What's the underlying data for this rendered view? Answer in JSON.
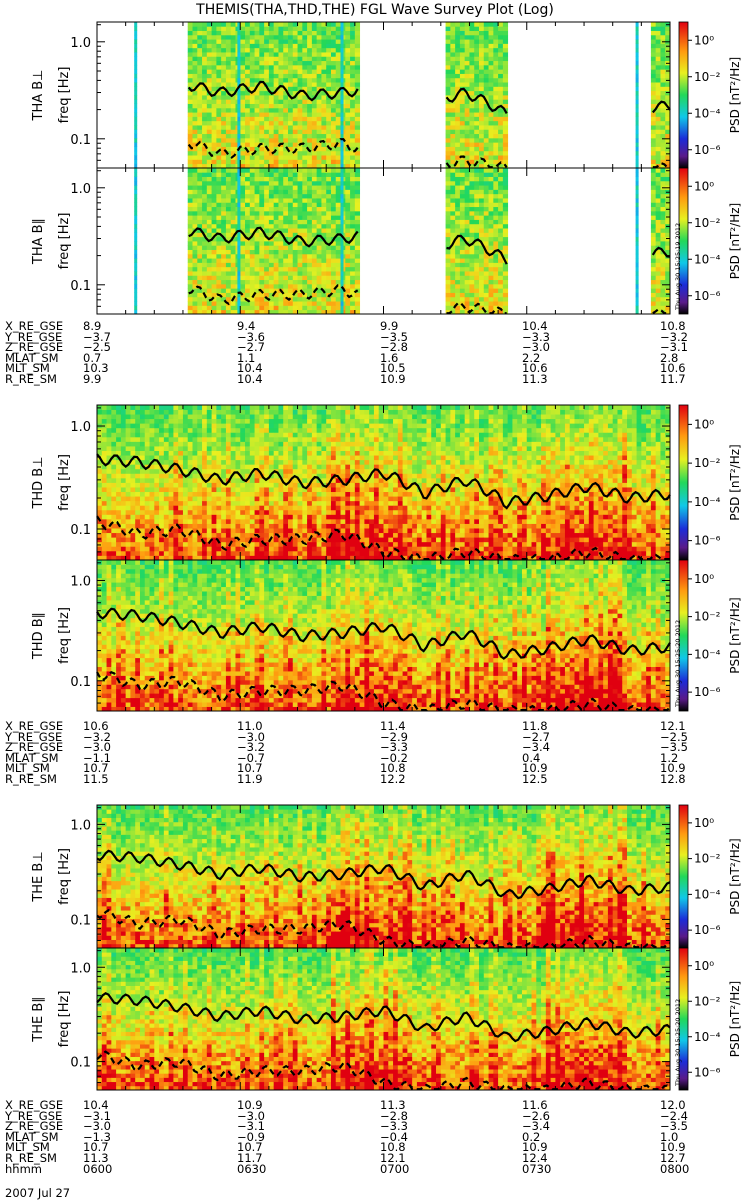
{
  "title": "THEMIS(THA,THD,THE) FGL Wave Survey Plot (Log)",
  "date_label": "2007 Jul 27",
  "colorbar": {
    "label": "PSD [nT²/Hz]",
    "ticks": [
      "10⁰",
      "10⁻²",
      "10⁻⁴",
      "10⁻⁶"
    ]
  },
  "freq_ticks": [
    "1.0",
    "0.1"
  ],
  "panels": [
    {
      "ylabel": "THA B⊥",
      "sublabel": "freq [Hz]",
      "probe": "THA",
      "stamp": ""
    },
    {
      "ylabel": "THA B∥",
      "sublabel": "freq [Hz]",
      "probe": "THA",
      "stamp": "Thu Aug 30 15:25:19 2012"
    },
    {
      "ylabel": "THD B⊥",
      "sublabel": "freq [Hz]",
      "probe": "THD",
      "stamp": ""
    },
    {
      "ylabel": "THD B∥",
      "sublabel": "freq [Hz]",
      "probe": "THD",
      "stamp": "Thu Aug 30 15:25:20 2012"
    },
    {
      "ylabel": "THE B⊥",
      "sublabel": "freq [Hz]",
      "probe": "THE",
      "stamp": ""
    },
    {
      "ylabel": "THE B∥",
      "sublabel": "freq [Hz]",
      "probe": "THE",
      "stamp": "Thu Aug 30 15:25:20 2012"
    }
  ],
  "ephemeris": [
    {
      "rows": [
        {
          "label": "X_RE_GSE",
          "values": [
            "8.9",
            "9.4",
            "9.9",
            "10.4",
            "10.8"
          ]
        },
        {
          "label": "Y_RE_GSE",
          "values": [
            "−3.7",
            "−3.6",
            "−3.5",
            "−3.3",
            "−3.2"
          ]
        },
        {
          "label": "Z_RE_GSE",
          "values": [
            "−2.5",
            "−2.7",
            "−2.8",
            "−3.0",
            "−3.1"
          ]
        },
        {
          "label": "MLAT_SM",
          "values": [
            "0.7",
            "1.1",
            "1.6",
            "2.2",
            "2.8"
          ]
        },
        {
          "label": "MLT_SM",
          "values": [
            "10.3",
            "10.4",
            "10.5",
            "10.6",
            "10.6"
          ]
        },
        {
          "label": "R_RE_SM",
          "values": [
            "9.9",
            "10.4",
            "10.9",
            "11.3",
            "11.7"
          ]
        }
      ]
    },
    {
      "rows": [
        {
          "label": "X_RE_GSE",
          "values": [
            "10.6",
            "11.0",
            "11.4",
            "11.8",
            "12.1"
          ]
        },
        {
          "label": "Y_RE_GSE",
          "values": [
            "−3.2",
            "−3.0",
            "−2.9",
            "−2.7",
            "−2.5"
          ]
        },
        {
          "label": "Z_RE_GSE",
          "values": [
            "−3.0",
            "−3.2",
            "−3.3",
            "−3.4",
            "−3.5"
          ]
        },
        {
          "label": "MLAT_SM",
          "values": [
            "−1.1",
            "−0.7",
            "−0.2",
            "0.4",
            "1.2"
          ]
        },
        {
          "label": "MLT_SM",
          "values": [
            "10.7",
            "10.7",
            "10.8",
            "10.9",
            "10.9"
          ]
        },
        {
          "label": "R_RE_SM",
          "values": [
            "11.5",
            "11.9",
            "12.2",
            "12.5",
            "12.8"
          ]
        }
      ]
    },
    {
      "rows": [
        {
          "label": "X_RE_GSE",
          "values": [
            "10.4",
            "10.9",
            "11.3",
            "11.6",
            "12.0"
          ]
        },
        {
          "label": "Y_RE_GSE",
          "values": [
            "−3.1",
            "−3.0",
            "−2.8",
            "−2.6",
            "−2.4"
          ]
        },
        {
          "label": "Z_RE_GSE",
          "values": [
            "−3.0",
            "−3.1",
            "−3.3",
            "−3.4",
            "−3.5"
          ]
        },
        {
          "label": "MLAT_SM",
          "values": [
            "−1.3",
            "−0.9",
            "−0.4",
            "0.2",
            "1.0"
          ]
        },
        {
          "label": "MLT_SM",
          "values": [
            "10.7",
            "10.7",
            "10.8",
            "10.9",
            "10.9"
          ]
        },
        {
          "label": "R_RE_SM",
          "values": [
            "11.3",
            "11.7",
            "12.1",
            "12.4",
            "12.7"
          ]
        },
        {
          "label": "hhmm",
          "values": [
            "0600",
            "0630",
            "0700",
            "0730",
            "0800"
          ]
        }
      ]
    }
  ],
  "chart_data": {
    "type": "heatmap",
    "title": "THEMIS(THA,THD,THE) FGL Wave Survey Plot (Log)",
    "x": [
      "0600",
      "0630",
      "0700",
      "0730",
      "0800"
    ],
    "xlabel": "hhmm",
    "ylabel": "freq [Hz]",
    "yscale": "log",
    "ylim": [
      0.05,
      1.6
    ],
    "zlabel": "PSD [nT²/Hz]",
    "zscale": "log",
    "zlim": [
      1e-07,
      10
    ],
    "colormap": "rainbow (black-purple-blue-cyan-green-yellow-orange-red)",
    "lines": [
      "solid black line",
      "dashed black line"
    ],
    "thd_the_solid_line_hz": [
      0.48,
      0.45,
      0.38,
      0.3,
      0.35,
      0.28,
      0.3,
      0.35,
      0.22,
      0.3,
      0.18,
      0.21,
      0.26,
      0.2,
      0.22
    ],
    "thd_the_dashed_line_hz": [
      0.12,
      0.09,
      0.1,
      0.07,
      0.08,
      0.08,
      0.09,
      0.06,
      0.05,
      0.06,
      0.05,
      0.05,
      0.06,
      0.05,
      0.05
    ],
    "tha_data_coverage_hhmm": [
      [
        "0619",
        "0655"
      ],
      [
        "0713",
        "0726"
      ],
      [
        "0756",
        "0800"
      ]
    ]
  }
}
